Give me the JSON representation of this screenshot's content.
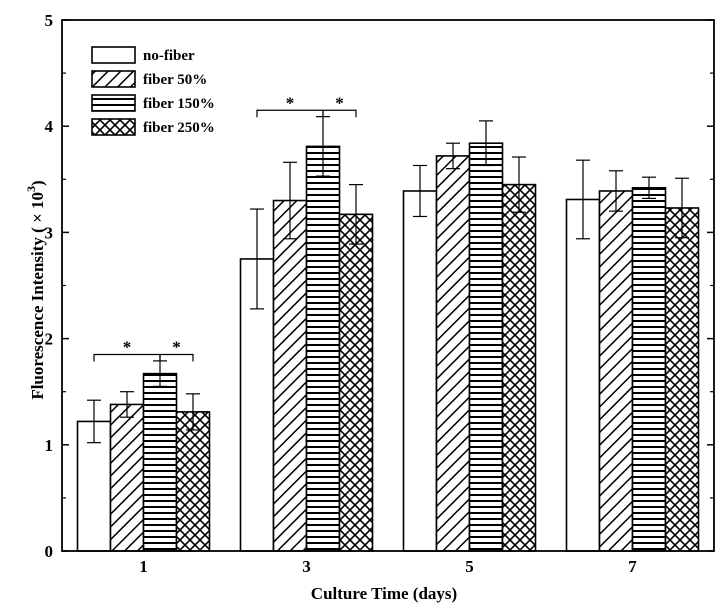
{
  "chart_data": {
    "type": "bar",
    "xlabel": "Culture Time (days)",
    "ylabel": "Fluorescence Intensity ( × 10",
    "ylabel_sup": "3",
    "ylabel_end": ")",
    "ylim": [
      0,
      5
    ],
    "yticks": [
      "0",
      "1",
      "2",
      "3",
      "4",
      "5"
    ],
    "categories": [
      "1",
      "3",
      "5",
      "7"
    ],
    "series": [
      {
        "name": "no-fiber",
        "pattern": "none",
        "values": [
          1.22,
          2.75,
          3.39,
          3.31
        ],
        "errors": [
          0.2,
          0.47,
          0.24,
          0.37
        ]
      },
      {
        "name": "fiber 50%",
        "pattern": "diagonal",
        "values": [
          1.38,
          3.3,
          3.72,
          3.39
        ],
        "errors": [
          0.12,
          0.36,
          0.12,
          0.19
        ]
      },
      {
        "name": "fiber 150%",
        "pattern": "horizontal",
        "values": [
          1.67,
          3.81,
          3.84,
          3.42
        ],
        "errors": [
          0.12,
          0.28,
          0.21,
          0.1
        ]
      },
      {
        "name": "fiber 250%",
        "pattern": "crosshatch",
        "values": [
          1.31,
          3.17,
          3.45,
          3.23
        ],
        "errors": [
          0.17,
          0.28,
          0.26,
          0.28
        ]
      }
    ],
    "significance": [
      {
        "category": "1",
        "from": 0,
        "to": 2,
        "y": 1.85,
        "label": "*"
      },
      {
        "category": "1",
        "from": 2,
        "to": 3,
        "y": 1.85,
        "label": "*"
      },
      {
        "category": "3",
        "from": 0,
        "to": 2,
        "y": 4.15,
        "label": "*"
      },
      {
        "category": "3",
        "from": 2,
        "to": 3,
        "y": 4.15,
        "label": "*"
      }
    ],
    "legend_position": "top-left",
    "grid": false,
    "colors": {
      "bar_fill": "#ffffff",
      "stroke": "#000000"
    }
  }
}
